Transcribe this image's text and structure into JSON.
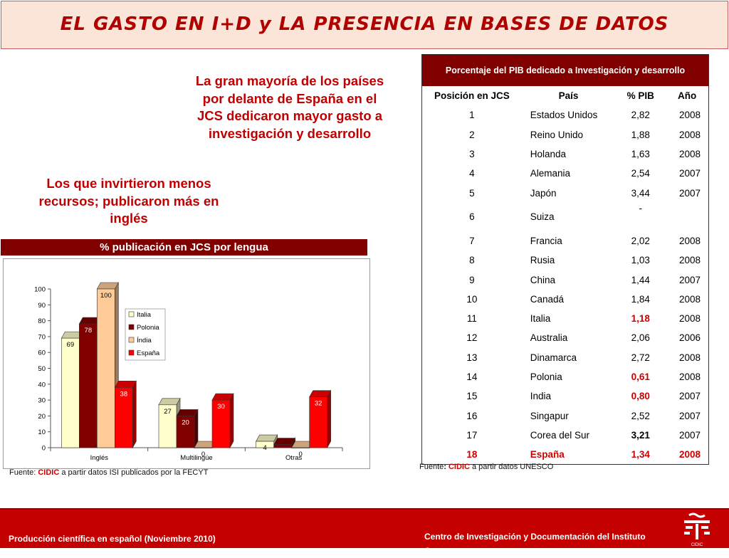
{
  "title": "EL GASTO EN I+D y LA PRESENCIA EN BASES DE DATOS",
  "message1": "La gran mayoría de los países por delante de España en el JCS dedicaron mayor gasto a investigación y desarrollo",
  "message2": "Los que invirtieron menos recursos; publicaron más en inglés",
  "chart_header": "% publicación en JCS por lengua",
  "chart_data": {
    "type": "bar",
    "title": "% publicación en JCS por lengua",
    "categories": [
      "Inglés",
      "Multilingüe",
      "Otras"
    ],
    "series": [
      {
        "name": "Italia",
        "values": [
          69,
          27,
          4
        ],
        "color": "#ffffcc"
      },
      {
        "name": "Polonia",
        "values": [
          78,
          20,
          2
        ],
        "color": "#800000"
      },
      {
        "name": "Índia",
        "values": [
          100,
          0,
          0
        ],
        "color": "#ffcc99"
      },
      {
        "name": "España",
        "values": [
          38,
          30,
          32
        ],
        "color": "#ff0000"
      }
    ],
    "ylim": [
      0,
      100
    ],
    "yticks": [
      0,
      10,
      20,
      30,
      40,
      50,
      60,
      70,
      80,
      90,
      100
    ],
    "legend": "inside-center",
    "style": "3d-clustered-bar"
  },
  "source_left": {
    "prefix": "Fuente: ",
    "org": "CIDIC",
    "suffix": " a partir datos ISI publicados por la FECYT"
  },
  "source_right": {
    "prefix": "Fuente",
    "colon": ": ",
    "org": "CIDIC",
    "suffix": " a partir datos UNESCO"
  },
  "table": {
    "title": "Porcentaje del PIB dedicado a Investigación y desarrollo",
    "headers": [
      "Posición en JCS",
      "País",
      "% PIB",
      "Año"
    ],
    "rows": [
      {
        "pos": "1",
        "country": "Estados Unidos",
        "pib": "2,82",
        "year": "2008"
      },
      {
        "pos": "2",
        "country": "Reino Unido",
        "pib": "1,88",
        "year": "2008"
      },
      {
        "pos": "3",
        "country": "Holanda",
        "pib": "1,63",
        "year": "2008"
      },
      {
        "pos": "4",
        "country": "Alemania",
        "pib": "2,54",
        "year": "2007"
      },
      {
        "pos": "5",
        "country": "Japón",
        "pib": "3,44",
        "year": "2007"
      },
      {
        "pos": "6",
        "country": "Suiza",
        "pib": "-",
        "year": ""
      },
      {
        "pos": "7",
        "country": "Francia",
        "pib": "2,02",
        "year": "2008"
      },
      {
        "pos": "8",
        "country": "Rusia",
        "pib": "1,03",
        "year": "2008"
      },
      {
        "pos": "9",
        "country": "China",
        "pib": "1,44",
        "year": "2007"
      },
      {
        "pos": "10",
        "country": "Canadá",
        "pib": "1,84",
        "year": "2008"
      },
      {
        "pos": "11",
        "country": "Italia",
        "pib": "1,18",
        "year": "2008"
      },
      {
        "pos": "12",
        "country": "Australia",
        "pib": "2,06",
        "year": "2006"
      },
      {
        "pos": "13",
        "country": "Dinamarca",
        "pib": "2,72",
        "year": "2008"
      },
      {
        "pos": "14",
        "country": "Polonia",
        "pib": "0,61",
        "year": "2008"
      },
      {
        "pos": "15",
        "country": "India",
        "pib": "0,80",
        "year": "2007"
      },
      {
        "pos": "16",
        "country": "Singapur",
        "pib": "2,52",
        "year": "2007"
      },
      {
        "pos": "17",
        "country": "Corea del Sur",
        "pib": "3,21",
        "year": "2007"
      },
      {
        "pos": "18",
        "country": "España",
        "pib": "1,34",
        "year": "2008"
      }
    ]
  },
  "footer": {
    "left": "Producción científica en español (Noviembre 2010)",
    "right": "Centro de Investigación y Documentación del Instituto Cervantes",
    "logo_text": "CIDIC"
  },
  "colors": {
    "accent": "#800000",
    "brand_red": "#c40000",
    "highlight": "#cc0000",
    "title_bg": "#fbe5d8"
  }
}
